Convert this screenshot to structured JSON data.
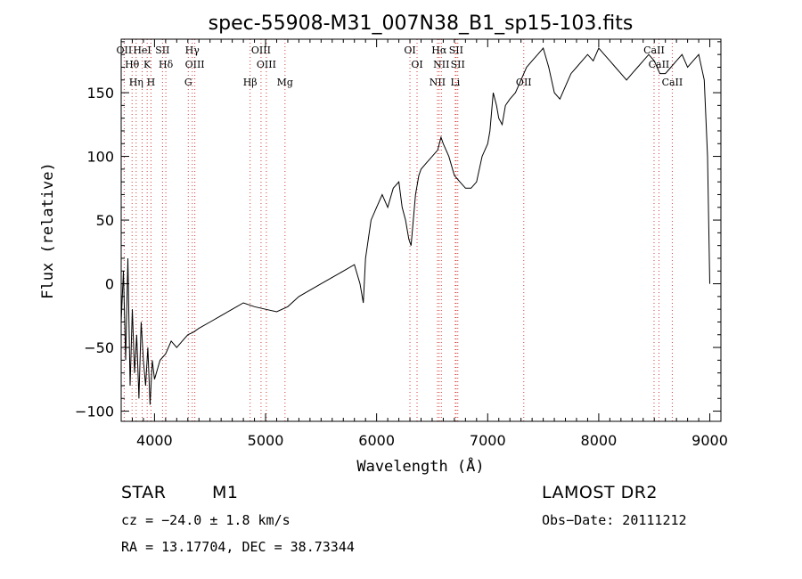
{
  "chart_data": {
    "type": "line",
    "title": "spec-55908-M31_007N38_B1_sp15-103.fits",
    "xlabel": "Wavelength (Å)",
    "ylabel": "Flux (relative)",
    "xlim": [
      3700,
      9100
    ],
    "ylim": [
      -108,
      192
    ],
    "xticks": [
      4000,
      5000,
      6000,
      7000,
      8000,
      9000
    ],
    "yticks": [
      -100,
      -50,
      0,
      50,
      100,
      150
    ],
    "grid": false,
    "series": [
      {
        "x": [
          3700,
          3720,
          3740,
          3760,
          3780,
          3800,
          3820,
          3840,
          3860,
          3880,
          3900,
          3920,
          3940,
          3960,
          3980,
          4000,
          4050,
          4100,
          4150,
          4200,
          4250,
          4300,
          4350,
          4400,
          4500,
          4600,
          4700,
          4800,
          4900,
          5000,
          5100,
          5200,
          5300,
          5400,
          5500,
          5600,
          5700,
          5800,
          5850,
          5880,
          5900,
          5950,
          6000,
          6050,
          6100,
          6150,
          6200,
          6230,
          6260,
          6290,
          6310,
          6330,
          6350,
          6380,
          6400,
          6450,
          6500,
          6550,
          6580,
          6600,
          6650,
          6700,
          6750,
          6800,
          6850,
          6900,
          6950,
          7000,
          7020,
          7050,
          7080,
          7100,
          7130,
          7160,
          7200,
          7250,
          7300,
          7350,
          7400,
          7450,
          7500,
          7550,
          7600,
          7650,
          7700,
          7750,
          7800,
          7850,
          7900,
          7950,
          8000,
          8050,
          8100,
          8150,
          8200,
          8250,
          8300,
          8350,
          8400,
          8450,
          8500,
          8550,
          8600,
          8650,
          8700,
          8750,
          8800,
          8850,
          8900,
          8950,
          8980,
          9000
        ],
        "y": [
          -30,
          10,
          -60,
          20,
          -80,
          -20,
          -70,
          -40,
          -90,
          -30,
          -60,
          -80,
          -50,
          -95,
          -60,
          -75,
          -60,
          -55,
          -45,
          -50,
          -45,
          -40,
          -38,
          -35,
          -30,
          -25,
          -20,
          -15,
          -18,
          -20,
          -22,
          -18,
          -10,
          -5,
          0,
          5,
          10,
          15,
          0,
          -15,
          20,
          50,
          60,
          70,
          60,
          75,
          80,
          60,
          50,
          35,
          30,
          50,
          70,
          85,
          90,
          95,
          100,
          105,
          115,
          110,
          100,
          85,
          80,
          75,
          75,
          80,
          100,
          110,
          120,
          150,
          140,
          130,
          125,
          140,
          145,
          150,
          160,
          170,
          175,
          180,
          185,
          170,
          150,
          145,
          155,
          165,
          170,
          175,
          180,
          175,
          185,
          180,
          175,
          170,
          165,
          160,
          165,
          170,
          175,
          180,
          175,
          165,
          165,
          170,
          175,
          180,
          170,
          175,
          180,
          160,
          100,
          0
        ]
      }
    ],
    "spectral_lines": [
      {
        "label": "OII",
        "x": 3727
      },
      {
        "label": "Hθ",
        "x": 3798
      },
      {
        "label": "Hη",
        "x": 3835
      },
      {
        "label": "HeI",
        "x": 3889
      },
      {
        "label": "K",
        "x": 3934
      },
      {
        "label": "H",
        "x": 3968
      },
      {
        "label": "SII",
        "x": 4072
      },
      {
        "label": "Hδ",
        "x": 4102
      },
      {
        "label": "G",
        "x": 4304
      },
      {
        "label": "Hγ",
        "x": 4340
      },
      {
        "label": "OIII",
        "x": 4363
      },
      {
        "label": "Hβ",
        "x": 4861
      },
      {
        "label": "OIII",
        "x": 4959
      },
      {
        "label": "OIII",
        "x": 5007
      },
      {
        "label": "Mg",
        "x": 5175
      },
      {
        "label": "OI",
        "x": 6300
      },
      {
        "label": "OI",
        "x": 6364
      },
      {
        "label": "NII",
        "x": 6548
      },
      {
        "label": "Hα",
        "x": 6563
      },
      {
        "label": "NII",
        "x": 6583
      },
      {
        "label": "Li",
        "x": 6708
      },
      {
        "label": "SII",
        "x": 6716
      },
      {
        "label": "SII",
        "x": 6731
      },
      {
        "label": "OII",
        "x": 7325
      },
      {
        "label": "CaII",
        "x": 8498
      },
      {
        "label": "CaII",
        "x": 8542
      },
      {
        "label": "CaII",
        "x": 8662
      }
    ]
  },
  "info": {
    "class": "STAR",
    "subclass": "M1",
    "survey": "LAMOST DR2",
    "cz": "cz = −24.0 ± 1.8 km/s",
    "obs_date": "Obs−Date: 20111212",
    "coords": "RA =  13.17704, DEC =  38.73344"
  }
}
